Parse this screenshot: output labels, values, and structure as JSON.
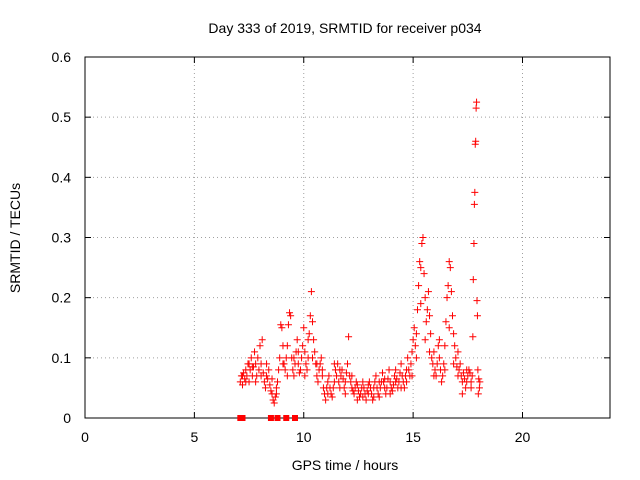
{
  "chart_data": {
    "type": "scatter",
    "title": "Day 333 of 2019, SRMTID for receiver p034",
    "xlabel": "GPS time / hours",
    "ylabel": "SRMTID / TECUs",
    "xlim": [
      0,
      24
    ],
    "ylim": [
      0,
      0.6
    ],
    "xticks": [
      "0",
      "5",
      "10",
      "15",
      "20"
    ],
    "yticks": [
      "0",
      "0.1",
      "0.2",
      "0.3",
      "0.4",
      "0.5",
      "0.6"
    ],
    "grid": true,
    "legend": "none",
    "series": [
      {
        "marker": "plus",
        "color": "#ff0000",
        "points": [
          [
            7.1,
            0.06
          ],
          [
            7.15,
            0.07
          ],
          [
            7.2,
            0.055
          ],
          [
            7.25,
            0.075
          ],
          [
            7.3,
            0.065
          ],
          [
            7.35,
            0.08
          ],
          [
            7.4,
            0.07
          ],
          [
            7.45,
            0.09
          ],
          [
            7.5,
            0.06
          ],
          [
            7.55,
            0.08
          ],
          [
            7.6,
            0.1
          ],
          [
            7.65,
            0.07
          ],
          [
            7.7,
            0.085
          ],
          [
            7.75,
            0.11
          ],
          [
            7.8,
            0.09
          ],
          [
            7.85,
            0.07
          ],
          [
            7.9,
            0.1
          ],
          [
            7.95,
            0.08
          ],
          [
            8.0,
            0.12
          ],
          [
            8.05,
            0.09
          ],
          [
            8.1,
            0.13
          ],
          [
            8.15,
            0.075
          ],
          [
            8.2,
            0.06
          ],
          [
            8.25,
            0.05
          ],
          [
            8.3,
            0.07
          ],
          [
            8.35,
            0.065
          ],
          [
            8.4,
            0.08
          ],
          [
            8.45,
            0.055
          ],
          [
            8.5,
            0.045
          ],
          [
            8.55,
            0.04
          ],
          [
            8.6,
            0.03
          ],
          [
            8.65,
            0.025
          ],
          [
            8.7,
            0.035
          ],
          [
            8.75,
            0.05
          ],
          [
            8.8,
            0.06
          ],
          [
            8.85,
            0.08
          ],
          [
            8.9,
            0.1
          ],
          [
            8.95,
            0.155
          ],
          [
            9.0,
            0.15
          ],
          [
            9.05,
            0.12
          ],
          [
            9.1,
            0.09
          ],
          [
            9.15,
            0.08
          ],
          [
            9.2,
            0.1
          ],
          [
            9.25,
            0.12
          ],
          [
            9.3,
            0.155
          ],
          [
            9.35,
            0.175
          ],
          [
            9.4,
            0.17
          ],
          [
            9.45,
            0.1
          ],
          [
            9.5,
            0.08
          ],
          [
            9.55,
            0.07
          ],
          [
            9.6,
            0.09
          ],
          [
            9.65,
            0.11
          ],
          [
            9.7,
            0.13
          ],
          [
            9.75,
            0.09
          ],
          [
            9.8,
            0.075
          ],
          [
            9.85,
            0.08
          ],
          [
            9.9,
            0.1
          ],
          [
            9.95,
            0.12
          ],
          [
            10.0,
            0.15
          ],
          [
            10.05,
            0.11
          ],
          [
            10.1,
            0.09
          ],
          [
            10.15,
            0.08
          ],
          [
            10.2,
            0.1
          ],
          [
            10.25,
            0.14
          ],
          [
            10.3,
            0.17
          ],
          [
            10.35,
            0.21
          ],
          [
            10.4,
            0.16
          ],
          [
            10.45,
            0.13
          ],
          [
            10.5,
            0.11
          ],
          [
            10.55,
            0.09
          ],
          [
            10.6,
            0.07
          ],
          [
            10.65,
            0.06
          ],
          [
            10.7,
            0.08
          ],
          [
            10.75,
            0.09
          ],
          [
            10.8,
            0.1
          ],
          [
            10.85,
            0.07
          ],
          [
            10.9,
            0.05
          ],
          [
            10.95,
            0.04
          ],
          [
            11.0,
            0.03
          ],
          [
            11.05,
            0.05
          ],
          [
            11.1,
            0.06
          ],
          [
            11.15,
            0.07
          ],
          [
            11.2,
            0.05
          ],
          [
            11.25,
            0.04
          ],
          [
            11.3,
            0.035
          ],
          [
            11.35,
            0.05
          ],
          [
            11.4,
            0.06
          ],
          [
            11.45,
            0.08
          ],
          [
            11.5,
            0.07
          ],
          [
            11.55,
            0.09
          ],
          [
            11.6,
            0.06
          ],
          [
            11.65,
            0.05
          ],
          [
            11.7,
            0.07
          ],
          [
            11.75,
            0.08
          ],
          [
            11.8,
            0.065
          ],
          [
            11.85,
            0.05
          ],
          [
            11.9,
            0.06
          ],
          [
            11.95,
            0.075
          ],
          [
            12.0,
            0.09
          ],
          [
            12.05,
            0.135
          ],
          [
            12.1,
            0.07
          ],
          [
            12.15,
            0.06
          ],
          [
            12.2,
            0.05
          ],
          [
            12.25,
            0.045
          ],
          [
            12.3,
            0.04
          ],
          [
            12.35,
            0.05
          ],
          [
            12.4,
            0.06
          ],
          [
            12.45,
            0.055
          ],
          [
            12.5,
            0.045
          ],
          [
            12.55,
            0.035
          ],
          [
            12.6,
            0.04
          ],
          [
            12.65,
            0.05
          ],
          [
            12.7,
            0.06
          ],
          [
            12.75,
            0.05
          ],
          [
            12.8,
            0.04
          ],
          [
            12.85,
            0.03
          ],
          [
            12.9,
            0.045
          ],
          [
            12.95,
            0.055
          ],
          [
            13.0,
            0.06
          ],
          [
            13.05,
            0.05
          ],
          [
            13.1,
            0.04
          ],
          [
            13.15,
            0.03
          ],
          [
            13.2,
            0.05
          ],
          [
            13.25,
            0.06
          ],
          [
            13.3,
            0.07
          ],
          [
            13.35,
            0.05
          ],
          [
            13.4,
            0.04
          ],
          [
            13.45,
            0.035
          ],
          [
            13.5,
            0.05
          ],
          [
            13.55,
            0.06
          ],
          [
            13.6,
            0.075
          ],
          [
            13.65,
            0.06
          ],
          [
            13.7,
            0.05
          ],
          [
            13.75,
            0.04
          ],
          [
            13.8,
            0.05
          ],
          [
            13.85,
            0.065
          ],
          [
            13.9,
            0.08
          ],
          [
            13.95,
            0.06
          ],
          [
            14.0,
            0.05
          ],
          [
            14.05,
            0.045
          ],
          [
            14.1,
            0.055
          ],
          [
            14.15,
            0.07
          ],
          [
            14.2,
            0.08
          ],
          [
            14.25,
            0.065
          ],
          [
            14.3,
            0.05
          ],
          [
            14.35,
            0.06
          ],
          [
            14.4,
            0.075
          ],
          [
            14.45,
            0.09
          ],
          [
            14.5,
            0.07
          ],
          [
            14.55,
            0.06
          ],
          [
            14.6,
            0.05
          ],
          [
            14.65,
            0.07
          ],
          [
            14.7,
            0.08
          ],
          [
            14.75,
            0.1
          ],
          [
            14.8,
            0.08
          ],
          [
            14.85,
            0.07
          ],
          [
            14.9,
            0.09
          ],
          [
            14.95,
            0.11
          ],
          [
            15.0,
            0.13
          ],
          [
            15.05,
            0.15
          ],
          [
            15.1,
            0.12
          ],
          [
            15.15,
            0.14
          ],
          [
            15.2,
            0.18
          ],
          [
            15.25,
            0.22
          ],
          [
            15.3,
            0.26
          ],
          [
            15.35,
            0.25
          ],
          [
            15.4,
            0.29
          ],
          [
            15.45,
            0.3
          ],
          [
            15.5,
            0.24
          ],
          [
            15.55,
            0.2
          ],
          [
            15.6,
            0.16
          ],
          [
            15.65,
            0.18
          ],
          [
            15.7,
            0.21
          ],
          [
            15.75,
            0.17
          ],
          [
            15.8,
            0.14
          ],
          [
            15.85,
            0.1
          ],
          [
            15.9,
            0.09
          ],
          [
            15.95,
            0.11
          ],
          [
            16.0,
            0.08
          ],
          [
            16.05,
            0.07
          ],
          [
            16.1,
            0.09
          ],
          [
            16.15,
            0.12
          ],
          [
            16.2,
            0.1
          ],
          [
            16.25,
            0.08
          ],
          [
            16.3,
            0.06
          ],
          [
            16.35,
            0.07
          ],
          [
            16.4,
            0.09
          ],
          [
            16.45,
            0.12
          ],
          [
            16.5,
            0.16
          ],
          [
            16.55,
            0.2
          ],
          [
            16.6,
            0.22
          ],
          [
            16.65,
            0.26
          ],
          [
            16.7,
            0.25
          ],
          [
            16.75,
            0.21
          ],
          [
            16.8,
            0.17
          ],
          [
            16.85,
            0.14
          ],
          [
            16.9,
            0.12
          ],
          [
            16.95,
            0.1
          ],
          [
            17.0,
            0.085
          ],
          [
            17.05,
            0.07
          ],
          [
            17.1,
            0.08
          ],
          [
            17.15,
            0.09
          ],
          [
            17.2,
            0.07
          ],
          [
            17.25,
            0.06
          ],
          [
            17.3,
            0.075
          ],
          [
            17.35,
            0.065
          ],
          [
            17.4,
            0.05
          ],
          [
            17.45,
            0.06
          ],
          [
            17.5,
            0.07
          ],
          [
            17.55,
            0.08
          ],
          [
            17.6,
            0.075
          ],
          [
            17.65,
            0.06
          ],
          [
            17.7,
            0.07
          ],
          [
            17.73,
            0.135
          ],
          [
            17.75,
            0.23
          ],
          [
            17.78,
            0.29
          ],
          [
            17.8,
            0.355
          ],
          [
            17.82,
            0.375
          ],
          [
            17.84,
            0.455
          ],
          [
            17.86,
            0.46
          ],
          [
            17.88,
            0.515
          ],
          [
            17.9,
            0.525
          ],
          [
            17.92,
            0.195
          ],
          [
            17.94,
            0.17
          ],
          [
            17.96,
            0.08
          ],
          [
            18.0,
            0.065
          ],
          [
            18.03,
            0.05
          ],
          [
            18.05,
            0.06
          ],
          [
            7.2,
            0.07
          ],
          [
            7.35,
            0.06
          ],
          [
            7.5,
            0.09
          ],
          [
            7.65,
            0.085
          ],
          [
            7.8,
            0.06
          ],
          [
            8.05,
            0.07
          ],
          [
            8.3,
            0.09
          ],
          [
            8.55,
            0.065
          ],
          [
            8.75,
            0.04
          ],
          [
            9.05,
            0.09
          ],
          [
            9.25,
            0.07
          ],
          [
            9.55,
            0.1
          ],
          [
            9.75,
            0.11
          ],
          [
            10.05,
            0.07
          ],
          [
            10.2,
            0.13
          ],
          [
            10.4,
            0.1
          ],
          [
            10.6,
            0.09
          ],
          [
            10.85,
            0.08
          ],
          [
            11.1,
            0.04
          ],
          [
            11.4,
            0.09
          ],
          [
            11.65,
            0.08
          ],
          [
            11.9,
            0.04
          ],
          [
            12.2,
            0.07
          ],
          [
            12.45,
            0.03
          ],
          [
            12.7,
            0.035
          ],
          [
            12.95,
            0.04
          ],
          [
            13.2,
            0.035
          ],
          [
            13.45,
            0.06
          ],
          [
            13.7,
            0.065
          ],
          [
            13.95,
            0.04
          ],
          [
            14.2,
            0.06
          ],
          [
            14.45,
            0.05
          ],
          [
            14.7,
            0.06
          ],
          [
            14.95,
            0.07
          ],
          [
            15.15,
            0.1
          ],
          [
            15.35,
            0.19
          ],
          [
            15.55,
            0.13
          ],
          [
            15.75,
            0.11
          ],
          [
            15.95,
            0.07
          ],
          [
            16.2,
            0.13
          ],
          [
            16.45,
            0.08
          ],
          [
            16.65,
            0.15
          ],
          [
            16.85,
            0.09
          ],
          [
            17.05,
            0.11
          ],
          [
            17.25,
            0.04
          ],
          [
            17.45,
            0.08
          ],
          [
            17.65,
            0.05
          ],
          [
            17.98,
            0.04
          ]
        ]
      },
      {
        "marker": "square",
        "color": "#ff0000",
        "points": [
          [
            7.1,
            0
          ],
          [
            7.2,
            0
          ],
          [
            8.5,
            0
          ],
          [
            8.8,
            0
          ],
          [
            9.2,
            0
          ],
          [
            9.6,
            0
          ]
        ]
      }
    ]
  }
}
